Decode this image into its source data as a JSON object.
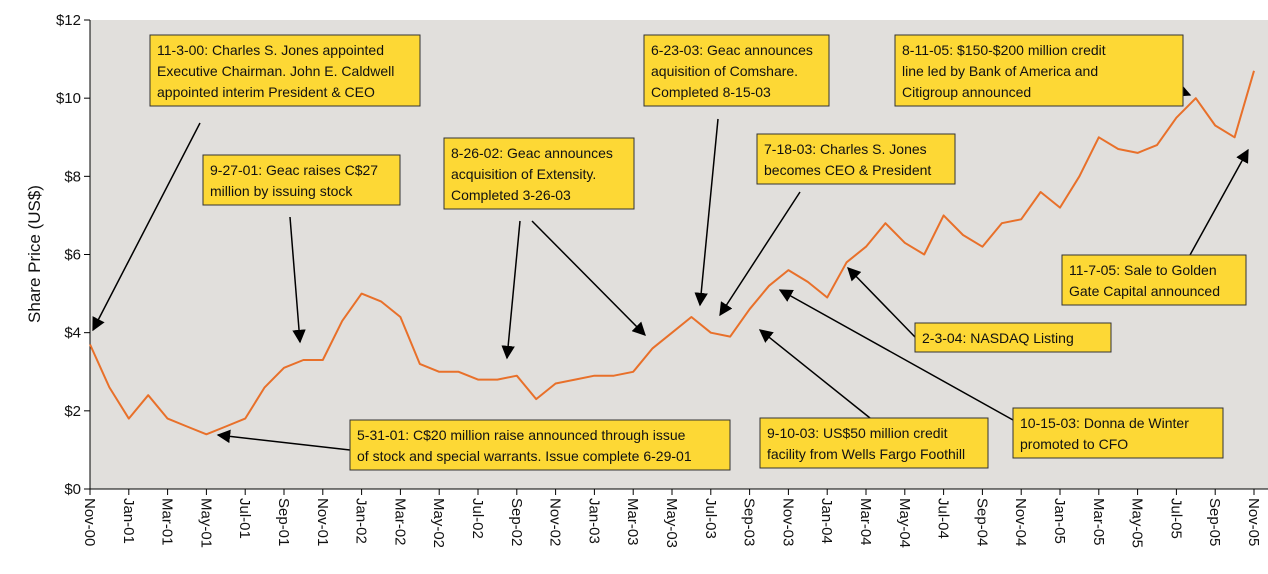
{
  "chart_data": {
    "type": "line",
    "y_label": "Share Price (US$)",
    "categories": [
      "Nov-00",
      null,
      "Jan-01",
      null,
      "Mar-01",
      null,
      "May-01",
      null,
      "Jul-01",
      null,
      "Sep-01",
      null,
      "Nov-01",
      null,
      "Jan-02",
      null,
      "Mar-02",
      null,
      "May-02",
      null,
      "Jul-02",
      null,
      "Sep-02",
      null,
      "Nov-02",
      null,
      "Jan-03",
      null,
      "Mar-03",
      null,
      "May-03",
      null,
      "Jul-03",
      null,
      "Sep-03",
      null,
      "Nov-03",
      null,
      "Jan-04",
      null,
      "Mar-04",
      null,
      "May-04",
      null,
      "Jul-04",
      null,
      "Sep-04",
      null,
      "Nov-04",
      null,
      "Jan-05",
      null,
      "Mar-05",
      null,
      "May-05",
      null,
      "Jul-05",
      null,
      "Sep-05",
      null,
      "Nov-05"
    ],
    "values": [
      3.7,
      2.6,
      1.8,
      2.4,
      1.8,
      1.6,
      1.4,
      1.6,
      1.8,
      2.6,
      3.1,
      3.3,
      3.3,
      4.3,
      5.0,
      4.8,
      4.4,
      3.2,
      3.0,
      3.0,
      2.8,
      2.8,
      2.9,
      2.3,
      2.7,
      2.8,
      2.9,
      2.9,
      3.0,
      3.6,
      4.0,
      4.4,
      4.0,
      3.9,
      4.6,
      5.2,
      5.6,
      5.3,
      4.9,
      5.8,
      6.2,
      6.8,
      6.3,
      6.0,
      7.0,
      6.5,
      6.2,
      6.8,
      6.9,
      7.6,
      7.2,
      8.0,
      9.0,
      8.7,
      8.6,
      8.8,
      9.5,
      10.0,
      9.3,
      9.0,
      10.7
    ],
    "color": "#e8702a",
    "ylim": [
      0,
      12
    ],
    "yticks": [
      {
        "value": 0,
        "label": "$0"
      },
      {
        "value": 2,
        "label": "$2"
      },
      {
        "value": 4,
        "label": "$4"
      },
      {
        "value": 6,
        "label": "$6"
      },
      {
        "value": 8,
        "label": "$8"
      },
      {
        "value": 10,
        "label": "$10"
      },
      {
        "value": 12,
        "label": "$12"
      }
    ],
    "grid": false,
    "annotations": [
      {
        "lines": [
          "11-3-00: Charles S. Jones appointed",
          "Executive Chairman. John E. Caldwell",
          "appointed interim President & CEO"
        ]
      },
      {
        "lines": [
          "9-27-01: Geac raises C$27",
          "million by issuing stock"
        ]
      },
      {
        "lines": [
          "8-26-02: Geac announces",
          "acquisition of Extensity.",
          "Completed 3-26-03"
        ]
      },
      {
        "lines": [
          "6-23-03: Geac announces",
          "aquisition of Comshare.",
          "Completed 8-15-03"
        ]
      },
      {
        "lines": [
          "7-18-03: Charles S. Jones",
          "becomes CEO & President"
        ]
      },
      {
        "lines": [
          "8-11-05: $150-$200 million credit",
          "line led by Bank of America and",
          "Citigroup announced"
        ]
      },
      {
        "lines": [
          "11-7-05: Sale to Golden",
          "Gate Capital announced"
        ]
      },
      {
        "lines": [
          "2-3-04: NASDAQ Listing"
        ]
      },
      {
        "lines": [
          "10-15-03: Donna de Winter",
          "promoted to CFO"
        ]
      },
      {
        "lines": [
          "9-10-03: US$50 million credit",
          "facility from Wells Fargo Foothill"
        ]
      },
      {
        "lines": [
          "5-31-01: C$20 million raise announced through issue",
          "of stock and special warrants. Issue complete 6-29-01"
        ]
      }
    ]
  }
}
